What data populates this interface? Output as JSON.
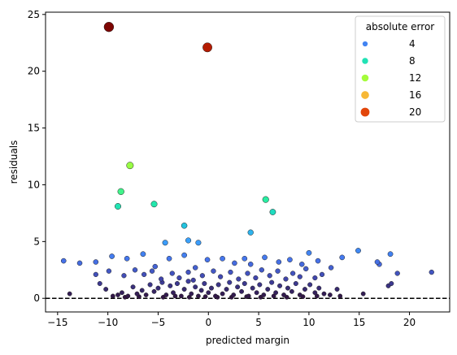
{
  "chart_data": {
    "type": "scatter",
    "xlabel": "predicted margin",
    "ylabel": "residuals",
    "xlim": [
      -16.2,
      24.0
    ],
    "ylim": [
      -1.2,
      25.2
    ],
    "x_ticks": [
      -15,
      -10,
      -5,
      0,
      5,
      10,
      15,
      20
    ],
    "y_ticks": [
      0,
      5,
      10,
      15,
      20,
      25
    ],
    "reference_line": {
      "y": 0,
      "style": "dashed",
      "color": "#000000"
    },
    "color_encoding": "absolute error",
    "colormap_stops": [
      "#30123b",
      "#4145ab",
      "#4675ed",
      "#39a2fc",
      "#1bcfd4",
      "#24eca6",
      "#61fc6c",
      "#a4fc3b",
      "#d1e834",
      "#f3c63a",
      "#fe9b2d",
      "#f36315",
      "#d93806",
      "#b11901",
      "#7a0402"
    ],
    "color_range": [
      0,
      24
    ],
    "legend": {
      "title": "absolute error",
      "placement": "upper right",
      "entries": [
        {
          "label": "4",
          "value": 4
        },
        {
          "label": "8",
          "value": 8
        },
        {
          "label": "12",
          "value": 12
        },
        {
          "label": "16",
          "value": 16
        },
        {
          "label": "20",
          "value": 20
        }
      ]
    },
    "points": [
      [
        -9.9,
        23.9
      ],
      [
        -0.1,
        22.1
      ],
      [
        -7.8,
        11.7
      ],
      [
        -8.7,
        9.4
      ],
      [
        -9.0,
        8.1
      ],
      [
        -5.4,
        8.3
      ],
      [
        5.7,
        8.7
      ],
      [
        6.4,
        7.6
      ],
      [
        -2.4,
        6.4
      ],
      [
        4.2,
        5.8
      ],
      [
        -2.0,
        5.1
      ],
      [
        -1.0,
        4.9
      ],
      [
        -4.3,
        4.9
      ],
      [
        -14.4,
        3.3
      ],
      [
        -12.8,
        3.1
      ],
      [
        -11.2,
        3.2
      ],
      [
        -9.6,
        3.7
      ],
      [
        -8.1,
        3.5
      ],
      [
        -6.5,
        3.9
      ],
      [
        -5.3,
        2.8
      ],
      [
        -3.9,
        3.5
      ],
      [
        -2.4,
        3.8
      ],
      [
        -1.3,
        2.7
      ],
      [
        -0.1,
        3.4
      ],
      [
        1.4,
        3.5
      ],
      [
        2.6,
        3.1
      ],
      [
        3.6,
        3.5
      ],
      [
        4.2,
        3.0
      ],
      [
        5.6,
        3.6
      ],
      [
        7.0,
        3.2
      ],
      [
        8.1,
        3.4
      ],
      [
        9.3,
        3.0
      ],
      [
        10.0,
        4.0
      ],
      [
        10.9,
        3.3
      ],
      [
        12.2,
        2.7
      ],
      [
        13.3,
        3.6
      ],
      [
        14.9,
        4.2
      ],
      [
        16.8,
        3.2
      ],
      [
        17.0,
        3.0
      ],
      [
        18.1,
        3.9
      ],
      [
        18.8,
        2.2
      ],
      [
        22.2,
        2.3
      ],
      [
        -11.2,
        2.1
      ],
      [
        -9.9,
        2.4
      ],
      [
        -8.4,
        2.0
      ],
      [
        -7.3,
        2.5
      ],
      [
        -6.4,
        2.1
      ],
      [
        -5.6,
        2.4
      ],
      [
        -4.7,
        1.7
      ],
      [
        -3.6,
        2.2
      ],
      [
        -2.9,
        1.8
      ],
      [
        -2.0,
        2.3
      ],
      [
        -1.5,
        1.6
      ],
      [
        -0.6,
        2.0
      ],
      [
        0.5,
        2.4
      ],
      [
        1.2,
        1.9
      ],
      [
        2.2,
        2.3
      ],
      [
        3.0,
        1.7
      ],
      [
        3.9,
        2.2
      ],
      [
        4.7,
        1.8
      ],
      [
        5.3,
        2.5
      ],
      [
        6.1,
        2.0
      ],
      [
        6.9,
        2.4
      ],
      [
        7.7,
        1.7
      ],
      [
        8.4,
        2.2
      ],
      [
        9.1,
        1.9
      ],
      [
        9.7,
        2.6
      ],
      [
        10.6,
        1.8
      ],
      [
        11.3,
        2.1
      ],
      [
        -13.8,
        0.4
      ],
      [
        -10.8,
        1.3
      ],
      [
        -10.2,
        0.8
      ],
      [
        -9.5,
        0.2
      ],
      [
        -9.0,
        0.3
      ],
      [
        -8.6,
        0.5
      ],
      [
        -8.0,
        0.2
      ],
      [
        -7.5,
        1.0
      ],
      [
        -7.1,
        0.4
      ],
      [
        -6.6,
        0.7
      ],
      [
        -6.2,
        0.3
      ],
      [
        -5.8,
        1.2
      ],
      [
        -5.4,
        0.6
      ],
      [
        -5.0,
        0.9
      ],
      [
        -4.6,
        1.4
      ],
      [
        -4.2,
        0.3
      ],
      [
        -3.8,
        1.1
      ],
      [
        -3.5,
        0.5
      ],
      [
        -3.1,
        1.3
      ],
      [
        -2.7,
        0.2
      ],
      [
        -2.4,
        0.8
      ],
      [
        -2.0,
        1.5
      ],
      [
        -1.7,
        0.4
      ],
      [
        -1.3,
        1.0
      ],
      [
        -1.0,
        0.2
      ],
      [
        -0.7,
        0.7
      ],
      [
        -0.4,
        1.3
      ],
      [
        0.0,
        0.5
      ],
      [
        0.3,
        0.9
      ],
      [
        0.7,
        0.2
      ],
      [
        1.0,
        1.2
      ],
      [
        1.4,
        0.4
      ],
      [
        1.8,
        0.8
      ],
      [
        2.1,
        1.4
      ],
      [
        2.5,
        0.3
      ],
      [
        2.9,
        1.0
      ],
      [
        3.3,
        0.6
      ],
      [
        3.6,
        1.3
      ],
      [
        4.0,
        0.2
      ],
      [
        4.4,
        0.9
      ],
      [
        4.8,
        0.5
      ],
      [
        5.1,
        1.2
      ],
      [
        5.5,
        0.3
      ],
      [
        5.9,
        0.8
      ],
      [
        6.3,
        1.4
      ],
      [
        6.7,
        0.5
      ],
      [
        7.1,
        1.1
      ],
      [
        7.5,
        0.3
      ],
      [
        7.9,
        0.9
      ],
      [
        8.3,
        0.6
      ],
      [
        8.7,
        1.3
      ],
      [
        9.1,
        0.3
      ],
      [
        9.6,
        0.8
      ],
      [
        10.1,
        1.2
      ],
      [
        10.6,
        0.5
      ],
      [
        11.0,
        0.9
      ],
      [
        11.5,
        0.4
      ],
      [
        12.1,
        0.3
      ],
      [
        12.8,
        0.8
      ],
      [
        13.1,
        0.2
      ],
      [
        15.4,
        0.4
      ],
      [
        17.9,
        1.1
      ],
      [
        18.2,
        1.3
      ],
      [
        -4.5,
        0.1
      ],
      [
        -3.3,
        0.2
      ],
      [
        -1.9,
        0.1
      ],
      [
        -0.3,
        0.15
      ],
      [
        0.9,
        0.1
      ],
      [
        2.3,
        0.1
      ],
      [
        3.8,
        0.15
      ],
      [
        5.2,
        0.1
      ],
      [
        6.5,
        0.2
      ],
      [
        7.8,
        0.1
      ],
      [
        9.4,
        0.15
      ],
      [
        -6.9,
        0.15
      ],
      [
        -8.3,
        0.1
      ],
      [
        10.8,
        0.2
      ]
    ]
  }
}
